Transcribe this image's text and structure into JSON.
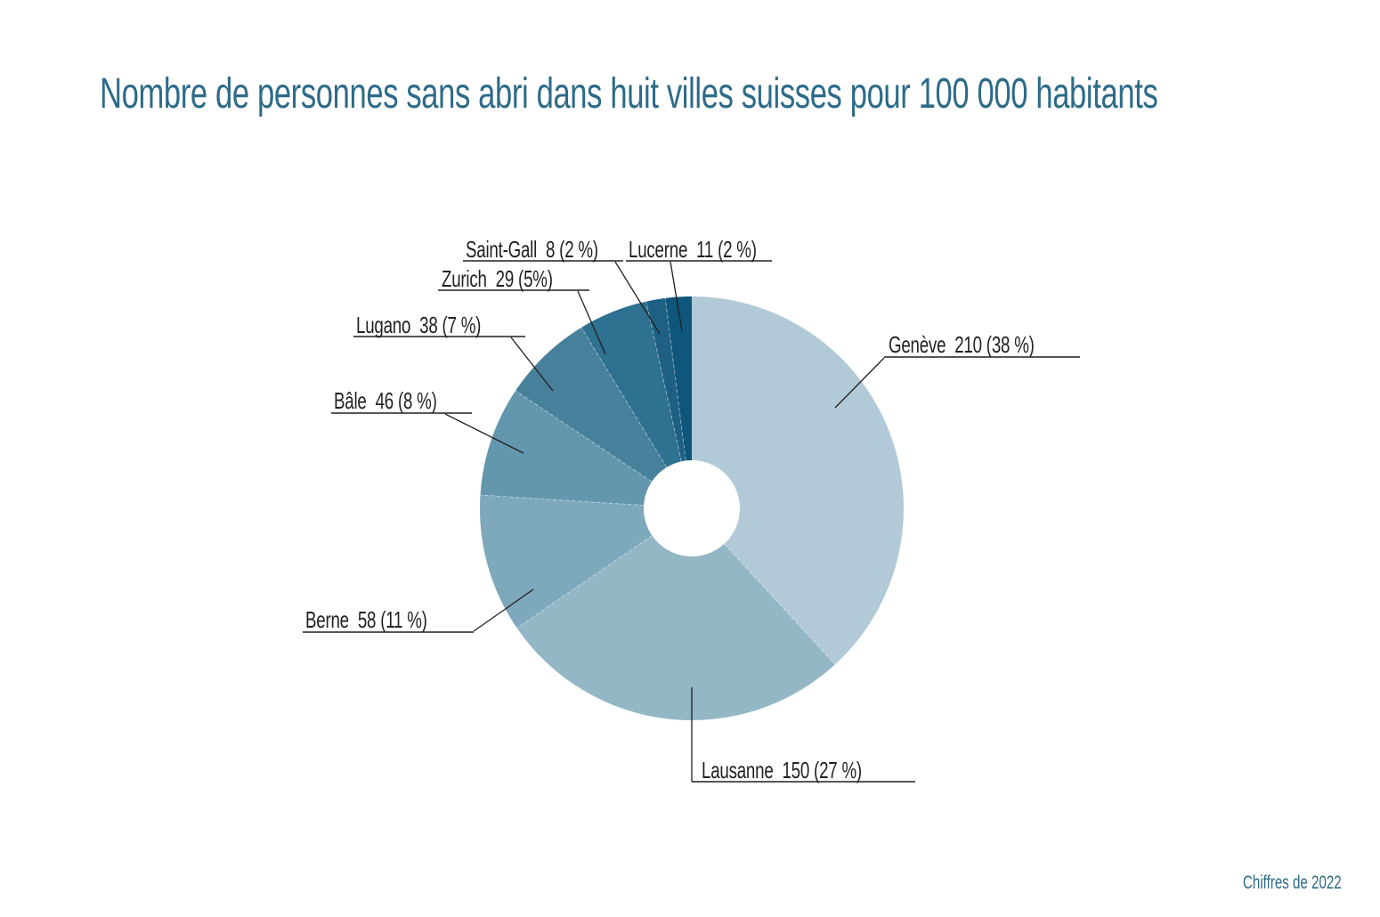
{
  "title": "Nombre de personnes sans abri dans huit villes suisses pour 100 000 habitants",
  "footnote": "Chiffres de 2022",
  "slice_labels": {
    "geneve": "Genève  210 (38 %)",
    "lausanne": "Lausanne  150 (27 %)",
    "berne": "Berne  58 (11 %)",
    "bale": "Bâle  46 (8 %)",
    "lugano": "Lugano  38 (7 %)",
    "zurich": "Zurich  29 (5%)",
    "saint_gall": "Saint-Gall  8 (2 %)",
    "lucerne": "Lucerne  11 (2 %)"
  },
  "chart_data": {
    "type": "pie",
    "subtype": "donut",
    "title": "Nombre de personnes sans abri dans huit villes suisses pour 100 000 habitants",
    "note": "Chiffres de 2022",
    "start_angle": "top",
    "direction": "clockwise",
    "categories": [
      "Genève",
      "Lausanne",
      "Berne",
      "Bâle",
      "Lugano",
      "Zurich",
      "Saint-Gall",
      "Lucerne"
    ],
    "values": [
      210,
      150,
      58,
      46,
      38,
      29,
      8,
      11
    ],
    "percent_labels": [
      "38 %",
      "27 %",
      "11 %",
      "8 %",
      "7 %",
      "5%",
      "2 %",
      "2 %"
    ],
    "colors": [
      "#b2cad7",
      "#94b7c6",
      "#7ea8bb",
      "#6297ae",
      "#47809a",
      "#2e7191",
      "#1e6084",
      "#0f567c"
    ],
    "title_color": "#2d6b88",
    "label_color": "#231f20",
    "legend_position": "callout-labels",
    "grid": false
  }
}
